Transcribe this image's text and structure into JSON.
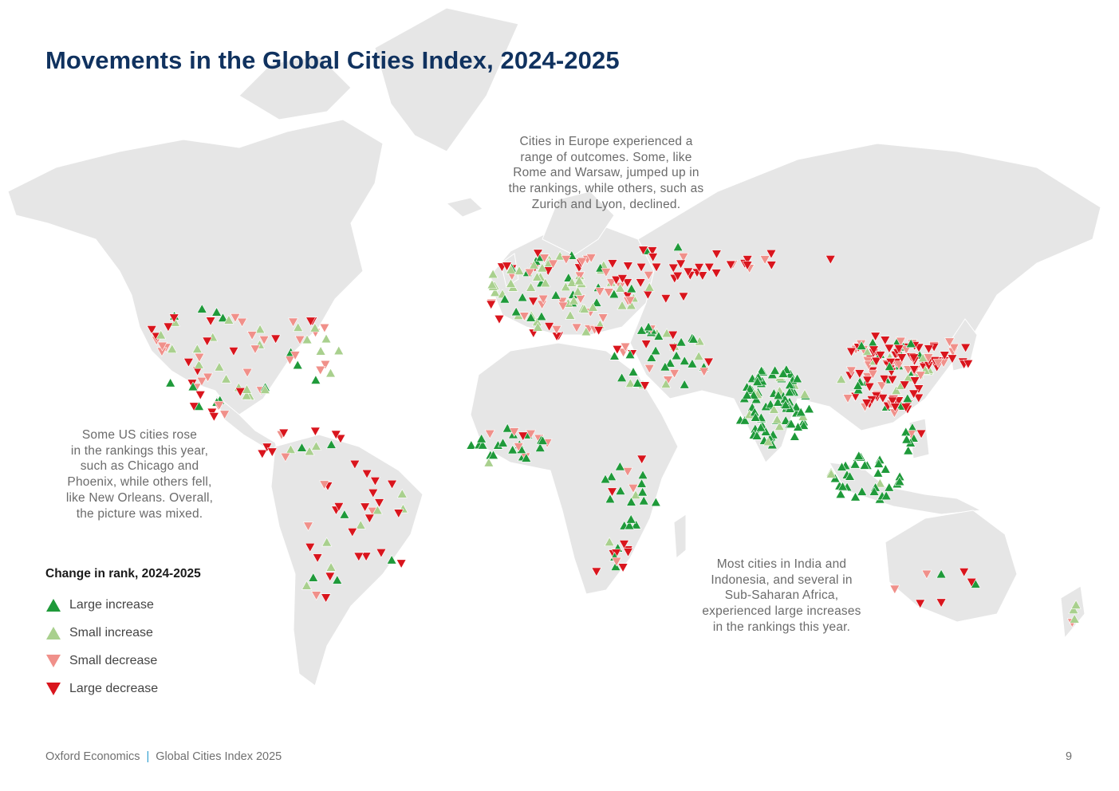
{
  "title": "Movements in the Global Cities Index, 2024-2025",
  "annotations": {
    "europe": "Cities in Europe experienced a\nrange of outcomes. Some, like\nRome and Warsaw, jumped up in\nthe rankings, while others, such as\nZurich and Lyon, declined.",
    "us": "Some US cities rose\nin the rankings this year,\nsuch as Chicago and\nPhoenix, while others fell,\nlike New Orleans. Overall,\nthe picture was mixed.",
    "asia": "Most cities in India and\nIndonesia, and several in\nSub-Saharan Africa,\nexperienced large increases\nin the rankings this year."
  },
  "legend": {
    "title": "Change in rank, 2024-2025",
    "items": [
      {
        "label": "Large increase",
        "icon": "triangle-up-icon",
        "color": "#1f9a3a"
      },
      {
        "label": "Small increase",
        "icon": "triangle-up-icon",
        "color": "#a9d08e"
      },
      {
        "label": "Small decrease",
        "icon": "triangle-down-icon",
        "color": "#f0908a"
      },
      {
        "label": "Large decrease",
        "icon": "triangle-down-icon",
        "color": "#d9151d"
      }
    ]
  },
  "footer": {
    "publisher": "Oxford Economics",
    "separator": "|",
    "report": "Global Cities Index 2025",
    "page": "9"
  },
  "colors": {
    "land": "#e6e6e6",
    "title": "#10325f"
  }
}
